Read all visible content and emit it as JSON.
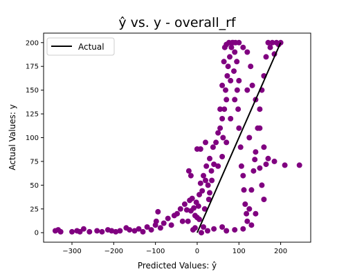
{
  "chart_data": {
    "type": "scatter",
    "title": "ŷ vs. y - overall_rf",
    "xlabel": "Predicted Values: ŷ",
    "ylabel": "Actual Values: y",
    "xlim": [
      -368,
      272
    ],
    "ylim": [
      -10,
      210
    ],
    "xticks": [
      -300,
      -200,
      -100,
      0,
      100,
      200
    ],
    "yticks": [
      0,
      25,
      50,
      75,
      100,
      125,
      150,
      175,
      200
    ],
    "xtick_labels": [
      "−300",
      "−200",
      "−100",
      "0",
      "100",
      "200"
    ],
    "ytick_labels": [
      "0",
      "25",
      "50",
      "75",
      "100",
      "125",
      "150",
      "175",
      "200"
    ],
    "grid": false,
    "legend": {
      "position": "upper-left",
      "entries": [
        "Actual"
      ]
    },
    "colors": {
      "points": "#800080",
      "line": "#000000"
    },
    "series": [
      {
        "kind": "scatter",
        "points": [
          [
            -340,
            2
          ],
          [
            -333,
            3
          ],
          [
            -327,
            1
          ],
          [
            -300,
            1
          ],
          [
            -288,
            2
          ],
          [
            -281,
            1
          ],
          [
            -272,
            4
          ],
          [
            -258,
            1
          ],
          [
            -240,
            2
          ],
          [
            -228,
            1
          ],
          [
            -214,
            3
          ],
          [
            -205,
            2
          ],
          [
            -195,
            1
          ],
          [
            -185,
            2
          ],
          [
            -170,
            5
          ],
          [
            -162,
            3
          ],
          [
            -150,
            2
          ],
          [
            -140,
            4
          ],
          [
            -130,
            1
          ],
          [
            -120,
            6
          ],
          [
            -110,
            3
          ],
          [
            -100,
            8
          ],
          [
            -98,
            12
          ],
          [
            -94,
            22
          ],
          [
            -88,
            5
          ],
          [
            -80,
            10
          ],
          [
            -70,
            15
          ],
          [
            -62,
            8
          ],
          [
            -55,
            18
          ],
          [
            -48,
            20
          ],
          [
            -40,
            25
          ],
          [
            -35,
            12
          ],
          [
            -30,
            30
          ],
          [
            -25,
            24
          ],
          [
            -22,
            12
          ],
          [
            -18,
            34
          ],
          [
            -15,
            23
          ],
          [
            -12,
            36
          ],
          [
            -8,
            26
          ],
          [
            -5,
            18
          ],
          [
            -2,
            32
          ],
          [
            0,
            16
          ],
          [
            3,
            28
          ],
          [
            5,
            40
          ],
          [
            8,
            52
          ],
          [
            12,
            44
          ],
          [
            15,
            60
          ],
          [
            20,
            55
          ],
          [
            22,
            70
          ],
          [
            26,
            50
          ],
          [
            30,
            78
          ],
          [
            34,
            65
          ],
          [
            38,
            90
          ],
          [
            40,
            72
          ],
          [
            45,
            95
          ],
          [
            50,
            105
          ],
          [
            55,
            110
          ],
          [
            60,
            120
          ],
          [
            62,
            100
          ],
          [
            65,
            130
          ],
          [
            68,
            150
          ],
          [
            70,
            140
          ],
          [
            72,
            165
          ],
          [
            74,
            175
          ],
          [
            78,
            185
          ],
          [
            80,
            160
          ],
          [
            82,
            195
          ],
          [
            84,
            200
          ],
          [
            88,
            170
          ],
          [
            90,
            190
          ],
          [
            92,
            200
          ],
          [
            95,
            180
          ],
          [
            96,
            150
          ],
          [
            98,
            130
          ],
          [
            100,
            110
          ],
          [
            104,
            90
          ],
          [
            106,
            70
          ],
          [
            110,
            60
          ],
          [
            112,
            45
          ],
          [
            115,
            30
          ],
          [
            118,
            20
          ],
          [
            120,
            12
          ],
          [
            125,
            25
          ],
          [
            130,
            45
          ],
          [
            135,
            65
          ],
          [
            140,
            85
          ],
          [
            145,
            110
          ],
          [
            150,
            130
          ],
          [
            155,
            150
          ],
          [
            160,
            165
          ],
          [
            165,
            185
          ],
          [
            170,
            200
          ],
          [
            175,
            195
          ],
          [
            180,
            200
          ],
          [
            185,
            188
          ],
          [
            190,
            200
          ],
          [
            195,
            198
          ],
          [
            200,
            200
          ],
          [
            155,
            50
          ],
          [
            160,
            35
          ],
          [
            140,
            20
          ],
          [
            130,
            8
          ],
          [
            110,
            4
          ],
          [
            90,
            3
          ],
          [
            70,
            2
          ],
          [
            60,
            6
          ],
          [
            40,
            4
          ],
          [
            25,
            2
          ],
          [
            15,
            6
          ],
          [
            10,
            0
          ],
          [
            210,
            71
          ],
          [
            245,
            71
          ],
          [
            185,
            75
          ],
          [
            165,
            72
          ],
          [
            150,
            68
          ],
          [
            138,
            77
          ],
          [
            125,
            100
          ],
          [
            -20,
            65
          ],
          [
            -15,
            60
          ],
          [
            0,
            88
          ],
          [
            8,
            88
          ],
          [
            20,
            95
          ],
          [
            55,
            130
          ],
          [
            60,
            155
          ],
          [
            64,
            180
          ],
          [
            66,
            195
          ],
          [
            70,
            198
          ],
          [
            76,
            200
          ],
          [
            86,
            200
          ],
          [
            100,
            200
          ],
          [
            110,
            195
          ],
          [
            120,
            190
          ],
          [
            128,
            175
          ],
          [
            132,
            155
          ],
          [
            140,
            140
          ],
          [
            150,
            110
          ],
          [
            160,
            90
          ],
          [
            170,
            78
          ],
          [
            120,
            150
          ],
          [
            100,
            160
          ],
          [
            90,
            140
          ],
          [
            80,
            120
          ],
          [
            70,
            95
          ],
          [
            60,
            80
          ],
          [
            50,
            70
          ],
          [
            35,
            55
          ],
          [
            30,
            42
          ],
          [
            28,
            35
          ],
          [
            18,
            25
          ],
          [
            5,
            14
          ],
          [
            -5,
            5
          ],
          [
            -10,
            3
          ]
        ]
      },
      {
        "kind": "line",
        "name": "Actual",
        "x": [
          0,
          200
        ],
        "y": [
          0,
          200
        ]
      }
    ]
  }
}
